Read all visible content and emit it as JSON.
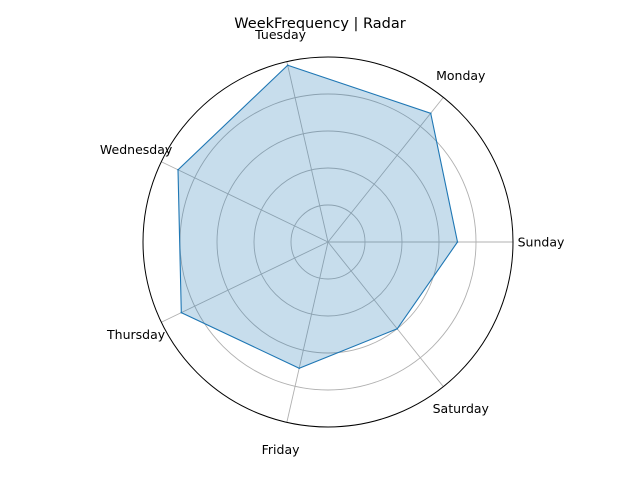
{
  "chart_data": {
    "type": "radar",
    "title": "WeekFrequency | Radar",
    "categories": [
      "Sunday",
      "Monday",
      "Tuesday",
      "Wednesday",
      "Thursday",
      "Friday",
      "Saturday"
    ],
    "series": [
      {
        "values": [
          0.7,
          0.89,
          0.98,
          0.9,
          0.88,
          0.7,
          0.6
        ]
      }
    ],
    "rlim": [
      0,
      1.0
    ],
    "grid": true,
    "radial_tick_labels_shown": false,
    "colors": {
      "line": "#1f77b4",
      "fill": "#1f77b4",
      "fill_opacity": 0.25
    }
  }
}
